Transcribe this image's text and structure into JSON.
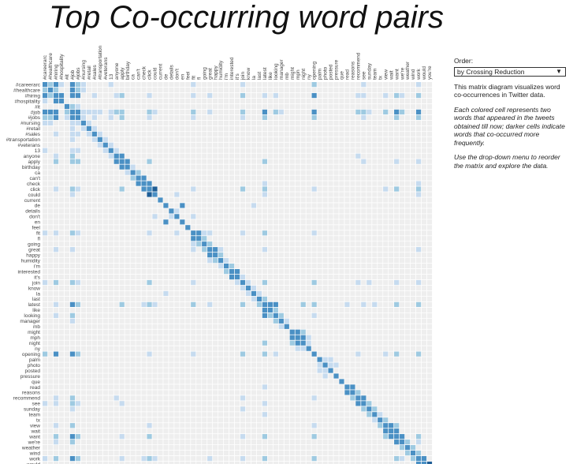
{
  "title": "Top Co-occurring word pairs",
  "controls": {
    "order_label": "Order:",
    "order_selected": "by Crossing Reduction"
  },
  "description": {
    "p1": "This matrix diagram visualizes word co-occurrences in Twitter data.",
    "p2": "Each colored cell represents two words that appeared in the tweets obtained till now; darker cells indicate words that co-occurred more frequently.",
    "p3": "Use the drop-down menu to reorder the matrix and explore the data."
  },
  "colors": {
    "empty": "#eeeeee",
    "low": "#c6dbef",
    "mid": "#9ecae1",
    "high": "#4a90c4",
    "top": "#1f5e96"
  },
  "chart_data": {
    "type": "heatmap",
    "words": [
      "#careerarc",
      "#healthcare",
      "#hiring",
      "#hospitality",
      "#it",
      "#job",
      "#jobs",
      "#nursing",
      "#retail",
      "#sales",
      "#transportation",
      "#veterans",
      "13",
      "anyone",
      "apply",
      "birthday",
      "ca",
      "can't",
      "check",
      "click",
      "could",
      "current",
      "de",
      "details",
      "don't",
      "en",
      "feel",
      "fit",
      "fl",
      "going",
      "great",
      "happy",
      "humidity",
      "i'm",
      "interested",
      "it's",
      "join",
      "know",
      "la",
      "last",
      "latest",
      "like",
      "looking",
      "manager",
      "mb",
      "might",
      "mph",
      "night",
      "ny",
      "opening",
      "palm",
      "photo",
      "posted",
      "pressure",
      "que",
      "read",
      "reasons",
      "recommend",
      "see",
      "sunday",
      "team",
      "tx",
      "view",
      "wait",
      "want",
      "we're",
      "weather",
      "wind",
      "work",
      "would",
      "you're"
    ],
    "pairs": [
      [
        0,
        1,
        2
      ],
      [
        0,
        2,
        3
      ],
      [
        0,
        5,
        3
      ],
      [
        0,
        6,
        2
      ],
      [
        0,
        3,
        1
      ],
      [
        0,
        7,
        1
      ],
      [
        0,
        12,
        1
      ],
      [
        0,
        27,
        1
      ],
      [
        0,
        36,
        1
      ],
      [
        0,
        49,
        2
      ],
      [
        0,
        58,
        1
      ],
      [
        0,
        68,
        1
      ],
      [
        1,
        2,
        2
      ],
      [
        1,
        5,
        3
      ],
      [
        1,
        6,
        2
      ],
      [
        1,
        7,
        1
      ],
      [
        2,
        3,
        3
      ],
      [
        2,
        5,
        3
      ],
      [
        2,
        6,
        3
      ],
      [
        2,
        9,
        1
      ],
      [
        2,
        13,
        1
      ],
      [
        2,
        14,
        2
      ],
      [
        2,
        19,
        1
      ],
      [
        2,
        27,
        1
      ],
      [
        2,
        30,
        1
      ],
      [
        2,
        36,
        2
      ],
      [
        2,
        40,
        1
      ],
      [
        2,
        42,
        1
      ],
      [
        2,
        49,
        3
      ],
      [
        2,
        57,
        1
      ],
      [
        2,
        58,
        1
      ],
      [
        2,
        62,
        1
      ],
      [
        2,
        64,
        2
      ],
      [
        2,
        65,
        1
      ],
      [
        2,
        68,
        2
      ],
      [
        4,
        5,
        2
      ],
      [
        4,
        6,
        1
      ],
      [
        5,
        6,
        3
      ],
      [
        5,
        7,
        1
      ],
      [
        5,
        8,
        1
      ],
      [
        5,
        9,
        1
      ],
      [
        5,
        10,
        1
      ],
      [
        5,
        12,
        1
      ],
      [
        5,
        13,
        2
      ],
      [
        5,
        14,
        2
      ],
      [
        5,
        19,
        2
      ],
      [
        5,
        20,
        1
      ],
      [
        5,
        27,
        2
      ],
      [
        5,
        30,
        1
      ],
      [
        5,
        36,
        2
      ],
      [
        5,
        40,
        3
      ],
      [
        5,
        42,
        2
      ],
      [
        5,
        43,
        1
      ],
      [
        5,
        49,
        3
      ],
      [
        5,
        57,
        2
      ],
      [
        5,
        58,
        2
      ],
      [
        5,
        59,
        1
      ],
      [
        5,
        62,
        2
      ],
      [
        5,
        64,
        3
      ],
      [
        5,
        65,
        2
      ],
      [
        5,
        68,
        3
      ],
      [
        6,
        7,
        1
      ],
      [
        6,
        9,
        1
      ],
      [
        6,
        12,
        1
      ],
      [
        6,
        14,
        2
      ],
      [
        6,
        19,
        1
      ],
      [
        6,
        27,
        1
      ],
      [
        6,
        36,
        1
      ],
      [
        6,
        40,
        2
      ],
      [
        6,
        49,
        2
      ],
      [
        6,
        58,
        1
      ],
      [
        6,
        64,
        2
      ],
      [
        6,
        68,
        2
      ],
      [
        7,
        8,
        1
      ],
      [
        8,
        9,
        1
      ],
      [
        9,
        10,
        1
      ],
      [
        10,
        11,
        1
      ],
      [
        11,
        12,
        1
      ],
      [
        12,
        13,
        1
      ],
      [
        13,
        14,
        3
      ],
      [
        13,
        57,
        1
      ],
      [
        14,
        15,
        3
      ],
      [
        14,
        19,
        2
      ],
      [
        14,
        40,
        2
      ],
      [
        14,
        58,
        1
      ],
      [
        14,
        64,
        1
      ],
      [
        14,
        68,
        1
      ],
      [
        15,
        16,
        1
      ],
      [
        16,
        17,
        2
      ],
      [
        17,
        18,
        3
      ],
      [
        18,
        19,
        3
      ],
      [
        18,
        40,
        1
      ],
      [
        18,
        68,
        1
      ],
      [
        19,
        20,
        4
      ],
      [
        19,
        27,
        1
      ],
      [
        19,
        36,
        2
      ],
      [
        19,
        40,
        2
      ],
      [
        19,
        49,
        1
      ],
      [
        19,
        62,
        1
      ],
      [
        19,
        64,
        2
      ],
      [
        19,
        68,
        2
      ],
      [
        20,
        24,
        1
      ],
      [
        20,
        40,
        1
      ],
      [
        20,
        68,
        1
      ],
      [
        22,
        25,
        3
      ],
      [
        22,
        38,
        1
      ],
      [
        23,
        24,
        1
      ],
      [
        24,
        27,
        1
      ],
      [
        27,
        28,
        3
      ],
      [
        27,
        29,
        1
      ],
      [
        27,
        30,
        1
      ],
      [
        27,
        36,
        1
      ],
      [
        27,
        40,
        2
      ],
      [
        27,
        49,
        1
      ],
      [
        28,
        29,
        2
      ],
      [
        29,
        30,
        2
      ],
      [
        30,
        31,
        3
      ],
      [
        30,
        32,
        1
      ],
      [
        30,
        40,
        1
      ],
      [
        30,
        68,
        1
      ],
      [
        31,
        32,
        2
      ],
      [
        32,
        33,
        1
      ],
      [
        33,
        34,
        2
      ],
      [
        34,
        35,
        3
      ],
      [
        35,
        36,
        1
      ],
      [
        36,
        37,
        1
      ],
      [
        36,
        40,
        2
      ],
      [
        36,
        49,
        2
      ],
      [
        36,
        57,
        1
      ],
      [
        36,
        59,
        1
      ],
      [
        36,
        64,
        1
      ],
      [
        36,
        68,
        1
      ],
      [
        37,
        38,
        1
      ],
      [
        38,
        39,
        1
      ],
      [
        39,
        40,
        2
      ],
      [
        40,
        41,
        3
      ],
      [
        40,
        42,
        3
      ],
      [
        40,
        47,
        2
      ],
      [
        40,
        49,
        2
      ],
      [
        40,
        55,
        1
      ],
      [
        40,
        58,
        1
      ],
      [
        40,
        60,
        1
      ],
      [
        40,
        64,
        2
      ],
      [
        40,
        68,
        2
      ],
      [
        41,
        42,
        2
      ],
      [
        42,
        43,
        2
      ],
      [
        42,
        49,
        1
      ],
      [
        43,
        44,
        1
      ],
      [
        45,
        46,
        3
      ],
      [
        45,
        47,
        2
      ],
      [
        46,
        47,
        3
      ],
      [
        46,
        48,
        1
      ],
      [
        47,
        48,
        1
      ],
      [
        49,
        57,
        1
      ],
      [
        49,
        62,
        1
      ],
      [
        49,
        64,
        2
      ],
      [
        49,
        68,
        2
      ],
      [
        50,
        51,
        1
      ],
      [
        50,
        52,
        1
      ],
      [
        51,
        52,
        1
      ],
      [
        51,
        53,
        1
      ],
      [
        55,
        56,
        3
      ],
      [
        56,
        57,
        2
      ],
      [
        57,
        58,
        3
      ],
      [
        58,
        59,
        2
      ],
      [
        59,
        60,
        2
      ],
      [
        60,
        61,
        1
      ],
      [
        61,
        62,
        2
      ],
      [
        62,
        63,
        3
      ],
      [
        62,
        64,
        2
      ],
      [
        63,
        64,
        3
      ],
      [
        64,
        65,
        3
      ],
      [
        64,
        68,
        2
      ],
      [
        65,
        66,
        2
      ],
      [
        65,
        68,
        1
      ],
      [
        66,
        67,
        2
      ],
      [
        67,
        68,
        2
      ],
      [
        68,
        69,
        3
      ],
      [
        69,
        70,
        4
      ]
    ]
  }
}
